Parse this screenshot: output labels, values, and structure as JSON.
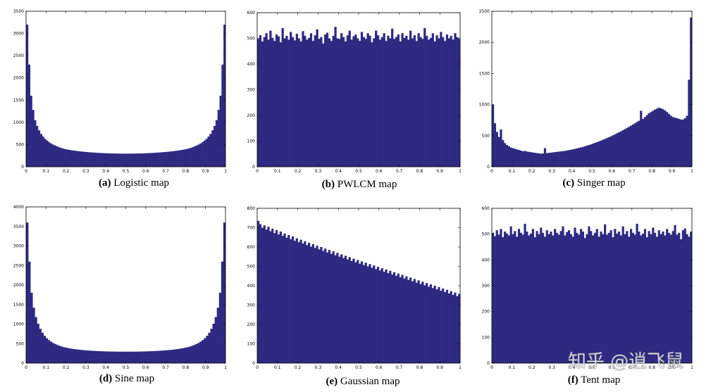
{
  "colors": {
    "bar": "#2e2a82",
    "axis": "#000000"
  },
  "chart_data": [
    {
      "id": "a",
      "type": "histogram",
      "caption_label": "(a)",
      "caption_text": "Logistic map",
      "xlim": [
        0,
        1
      ],
      "ylim": [
        0,
        3500
      ],
      "xticks": [
        "0",
        "0.1",
        "0.2",
        "0.3",
        "0.4",
        "0.5",
        "0.6",
        "0.7",
        "0.8",
        "0.9",
        "1"
      ],
      "yticks": [
        "0",
        "500",
        "1000",
        "1500",
        "2000",
        "2500",
        "3000",
        "3500"
      ],
      "values": [
        3200,
        2300,
        1600,
        1280,
        1050,
        920,
        820,
        740,
        680,
        630,
        590,
        555,
        525,
        500,
        480,
        460,
        440,
        425,
        412,
        400,
        390,
        382,
        375,
        368,
        362,
        356,
        350,
        345,
        340,
        336,
        332,
        328,
        324,
        321,
        318,
        315,
        312,
        310,
        308,
        306,
        304,
        302,
        301,
        300,
        299,
        298,
        297,
        297,
        296,
        296,
        296,
        296,
        297,
        297,
        298,
        299,
        300,
        301,
        302,
        304,
        306,
        308,
        310,
        312,
        315,
        318,
        321,
        324,
        328,
        332,
        336,
        340,
        345,
        350,
        356,
        362,
        368,
        375,
        382,
        390,
        400,
        412,
        425,
        440,
        460,
        480,
        500,
        525,
        555,
        590,
        630,
        680,
        740,
        820,
        920,
        1050,
        1280,
        1600,
        2300,
        3200
      ]
    },
    {
      "id": "b",
      "type": "histogram",
      "caption_label": "(b)",
      "caption_text": "PWLCM map",
      "xlim": [
        0,
        1
      ],
      "ylim": [
        0,
        600
      ],
      "xticks": [
        "0",
        "0.1",
        "0.2",
        "0.3",
        "0.4",
        "0.5",
        "0.6",
        "0.7",
        "0.8",
        "0.9",
        "1"
      ],
      "yticks": [
        "0",
        "100",
        "200",
        "300",
        "400",
        "500",
        "600"
      ],
      "values": [
        498,
        512,
        488,
        505,
        520,
        495,
        530,
        502,
        490,
        515,
        508,
        485,
        540,
        500,
        510,
        495,
        525,
        505,
        492,
        518,
        500,
        488,
        528,
        510,
        495,
        502,
        520,
        490,
        512,
        535,
        498,
        505,
        480,
        515,
        522,
        500,
        490,
        510,
        545,
        500,
        498,
        520,
        505,
        488,
        512,
        530,
        495,
        508,
        515,
        500,
        490,
        525,
        505,
        498,
        520,
        510,
        485,
        500,
        530,
        512,
        495,
        505,
        520,
        490,
        510,
        500,
        538,
        498,
        505,
        515,
        488,
        520,
        502,
        510,
        495,
        530,
        500,
        512,
        490,
        520,
        505,
        498,
        540,
        510,
        495,
        502,
        520,
        488,
        512,
        500,
        525,
        505,
        490,
        515,
        500,
        510,
        495,
        520,
        505,
        498
      ]
    },
    {
      "id": "c",
      "type": "histogram",
      "caption_label": "(c)",
      "caption_text": "Singer map",
      "xlim": [
        0,
        1
      ],
      "ylim": [
        0,
        2500
      ],
      "xticks": [
        "0",
        "0.1",
        "0.2",
        "0.3",
        "0.4",
        "0.5",
        "0.6",
        "0.7",
        "0.8",
        "0.9",
        "1"
      ],
      "yticks": [
        "0",
        "500",
        "1000",
        "1500",
        "2000",
        "2500"
      ],
      "values": [
        1000,
        700,
        560,
        480,
        600,
        430,
        380,
        350,
        330,
        310,
        300,
        290,
        280,
        270,
        260,
        250,
        255,
        245,
        240,
        235,
        230,
        225,
        220,
        215,
        210,
        215,
        300,
        220,
        225,
        228,
        232,
        236,
        240,
        244,
        248,
        252,
        256,
        262,
        268,
        274,
        280,
        288,
        296,
        304,
        312,
        320,
        330,
        340,
        350,
        360,
        372,
        384,
        396,
        408,
        420,
        434,
        448,
        462,
        476,
        490,
        506,
        522,
        538,
        554,
        570,
        588,
        606,
        624,
        642,
        660,
        680,
        700,
        720,
        740,
        900,
        770,
        800,
        830,
        860,
        880,
        900,
        920,
        935,
        950,
        940,
        925,
        905,
        880,
        850,
        820,
        800,
        790,
        780,
        770,
        760,
        760,
        780,
        820,
        1400,
        2400
      ]
    },
    {
      "id": "d",
      "type": "histogram",
      "caption_label": "(d)",
      "caption_text": "Sine map",
      "xlim": [
        0,
        1
      ],
      "ylim": [
        0,
        4000
      ],
      "xticks": [
        "0",
        "0.1",
        "0.2",
        "0.3",
        "0.4",
        "0.5",
        "0.6",
        "0.7",
        "0.8",
        "0.9",
        "1"
      ],
      "yticks": [
        "0",
        "500",
        "1000",
        "1500",
        "2000",
        "2500",
        "3000",
        "3500",
        "4000"
      ],
      "values": [
        3600,
        2600,
        1800,
        1420,
        1180,
        1010,
        880,
        780,
        700,
        640,
        590,
        550,
        515,
        487,
        463,
        442,
        424,
        409,
        396,
        384,
        374,
        365,
        357,
        350,
        344,
        338,
        333,
        328,
        324,
        320,
        316,
        313,
        310,
        307,
        305,
        303,
        301,
        299,
        298,
        297,
        296,
        295,
        294,
        294,
        294,
        294,
        294,
        294,
        294,
        295,
        295,
        296,
        297,
        298,
        299,
        301,
        303,
        305,
        307,
        310,
        313,
        316,
        320,
        324,
        328,
        333,
        338,
        344,
        350,
        357,
        365,
        374,
        384,
        396,
        409,
        424,
        442,
        463,
        487,
        515,
        550,
        590,
        640,
        700,
        780,
        880,
        1010,
        1180,
        1420,
        1800,
        2600,
        3600
      ]
    },
    {
      "id": "e",
      "type": "histogram",
      "caption_label": "(e)",
      "caption_text": "Gaussian map",
      "xlim": [
        0,
        1
      ],
      "ylim": [
        0,
        800
      ],
      "xticks": [
        "0",
        "0.1",
        "0.2",
        "0.3",
        "0.4",
        "0.5",
        "0.6",
        "0.7",
        "0.8",
        "0.9",
        "1"
      ],
      "yticks": [
        "0",
        "100",
        "200",
        "300",
        "400",
        "500",
        "600",
        "700",
        "800"
      ],
      "values": [
        735,
        718,
        700,
        712,
        690,
        705,
        682,
        695,
        672,
        688,
        665,
        680,
        658,
        670,
        648,
        662,
        640,
        655,
        632,
        645,
        625,
        638,
        618,
        630,
        610,
        622,
        602,
        615,
        595,
        607,
        588,
        600,
        580,
        592,
        572,
        585,
        565,
        578,
        558,
        570,
        550,
        562,
        543,
        555,
        536,
        548,
        528,
        540,
        521,
        533,
        514,
        526,
        507,
        519,
        500,
        512,
        493,
        505,
        486,
        498,
        479,
        491,
        472,
        484,
        465,
        477,
        458,
        470,
        451,
        463,
        444,
        456,
        437,
        449,
        430,
        442,
        423,
        435,
        416,
        428,
        409,
        421,
        402,
        414,
        395,
        407,
        388,
        400,
        381,
        393,
        374,
        386,
        367,
        379,
        360,
        372,
        353,
        365,
        346,
        358
      ]
    },
    {
      "id": "f",
      "type": "histogram",
      "caption_label": "(f)",
      "caption_text": "Tent map",
      "xlim": [
        0,
        1
      ],
      "ylim": [
        0,
        600
      ],
      "xticks": [
        "0",
        "0.1",
        "0.2",
        "0.3",
        "0.4",
        "0.5",
        "0.6",
        "0.7",
        "0.8",
        "0.9",
        "1"
      ],
      "yticks": [
        "0",
        "100",
        "200",
        "300",
        "400",
        "500",
        "600"
      ],
      "values": [
        505,
        492,
        515,
        498,
        520,
        488,
        510,
        502,
        495,
        530,
        500,
        512,
        490,
        520,
        505,
        498,
        540,
        510,
        495,
        502,
        520,
        488,
        512,
        500,
        525,
        505,
        490,
        515,
        500,
        510,
        495,
        520,
        505,
        498,
        512,
        530,
        495,
        508,
        515,
        500,
        490,
        525,
        505,
        498,
        520,
        510,
        485,
        500,
        530,
        512,
        495,
        505,
        520,
        490,
        510,
        500,
        538,
        498,
        505,
        515,
        488,
        520,
        502,
        510,
        495,
        530,
        500,
        512,
        490,
        520,
        505,
        498,
        540,
        510,
        495,
        502,
        520,
        488,
        512,
        500,
        525,
        505,
        490,
        515,
        500,
        510,
        495,
        520,
        505,
        498,
        512,
        535,
        498,
        505,
        480,
        515,
        522,
        500,
        490,
        510
      ]
    }
  ],
  "watermark": "知乎 @逍飞鼠"
}
